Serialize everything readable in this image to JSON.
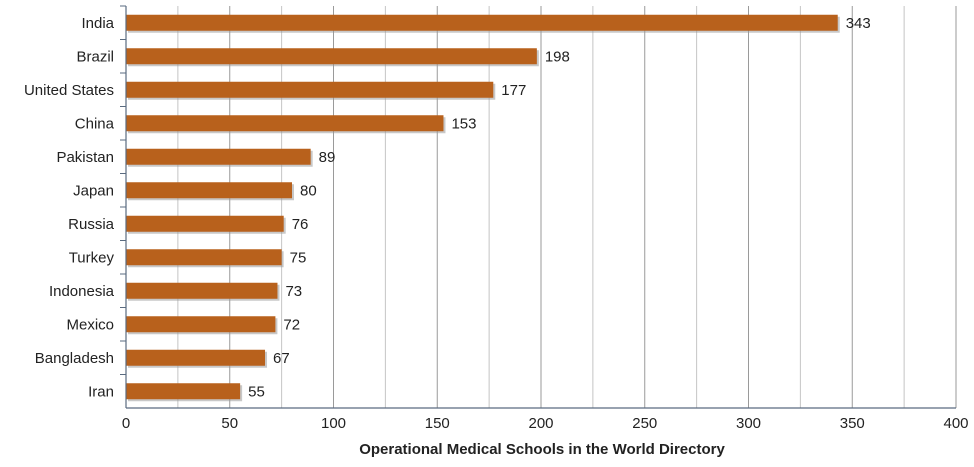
{
  "chart_data": {
    "type": "bar",
    "orientation": "horizontal",
    "categories": [
      "India",
      "Brazil",
      "United States",
      "China",
      "Pakistan",
      "Japan",
      "Russia",
      "Turkey",
      "Indonesia",
      "Mexico",
      "Bangladesh",
      "Iran"
    ],
    "values": [
      343,
      198,
      177,
      153,
      89,
      80,
      76,
      75,
      73,
      72,
      67,
      55
    ],
    "title": "",
    "xlabel": "Operational Medical Schools in the World Directory",
    "ylabel": "",
    "xlim": [
      0,
      400
    ],
    "xticks": [
      0,
      50,
      100,
      150,
      200,
      250,
      300,
      350,
      400
    ],
    "grid": "vertical",
    "data_labels": true,
    "legend": "none",
    "colors": {
      "bar": "#b8611c",
      "bar_shadow": "#9b9b9b",
      "grid": "#9a9a9a",
      "axis": "#5a6b80",
      "text": "#222222"
    }
  }
}
